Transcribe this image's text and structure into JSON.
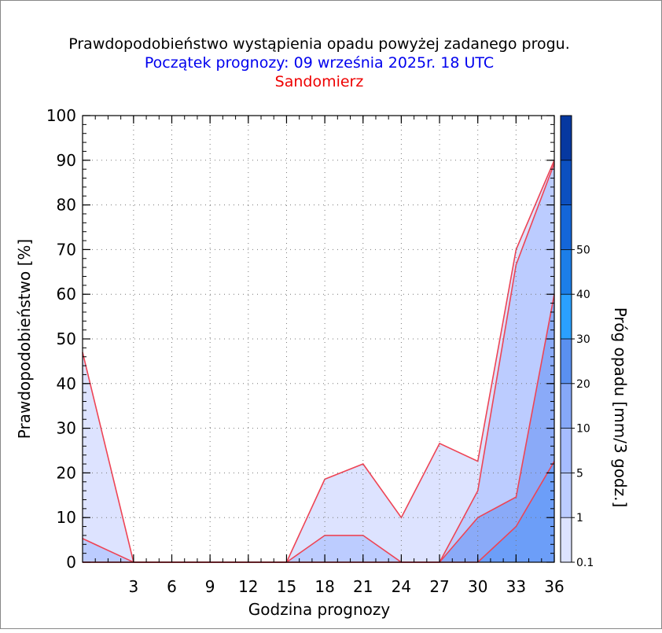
{
  "chart_data": {
    "type": "area",
    "title": "Prawdopodobieństwo wystąpienia opadu powyżej zadanego progu.",
    "subtitle": "Początek prognozy: 09 września 2025r. 18 UTC",
    "station": "Sandomierz",
    "xlabel": "Godzina prognozy",
    "ylabel": "Prawdopodobieństwo [%]",
    "colorbar_label": "Próg opadu [mm/3 godz.]",
    "xlim": [
      -1,
      36
    ],
    "ylim": [
      0,
      100
    ],
    "x_ticks": [
      3,
      6,
      9,
      12,
      15,
      18,
      21,
      24,
      27,
      30,
      33,
      36
    ],
    "y_ticks": [
      0,
      10,
      20,
      30,
      40,
      50,
      60,
      70,
      80,
      90,
      100
    ],
    "x": [
      -1,
      3,
      6,
      9,
      12,
      15,
      18,
      21,
      24,
      27,
      30,
      33,
      36
    ],
    "series": [
      {
        "threshold": "0.1",
        "color": "#dde3ff",
        "values": [
          47,
          0,
          0,
          0,
          0,
          0,
          18.6,
          22,
          10,
          26.6,
          22.6,
          70,
          90
        ]
      },
      {
        "threshold": "1",
        "color": "#bcccff",
        "values": [
          5.3,
          0,
          0,
          0,
          0,
          0,
          6,
          6,
          0,
          0,
          16,
          66.6,
          89.3
        ]
      },
      {
        "threshold": "5",
        "color": "#8aaaf8",
        "values": [
          0,
          0,
          0,
          0,
          0,
          0,
          0,
          0,
          0,
          0,
          10,
          14.6,
          60
        ]
      },
      {
        "threshold": "10",
        "color": "#6c9ef8",
        "values": [
          0,
          0,
          0,
          0,
          0,
          0,
          0,
          0,
          0,
          0,
          0,
          8,
          22.6
        ]
      }
    ],
    "colorbar": {
      "labels": [
        "0.1",
        "1",
        "5",
        "10",
        "20",
        "30",
        "40",
        "50"
      ],
      "colors": [
        "#dde3ff",
        "#bcccff",
        "#a6bcff",
        "#86a8f8",
        "#5a90f0",
        "#2aa0ff",
        "#1c7ee8",
        "#1466d8",
        "#0c50c0",
        "#0638a0"
      ]
    },
    "line_color": "#ee4455",
    "grid": true
  }
}
